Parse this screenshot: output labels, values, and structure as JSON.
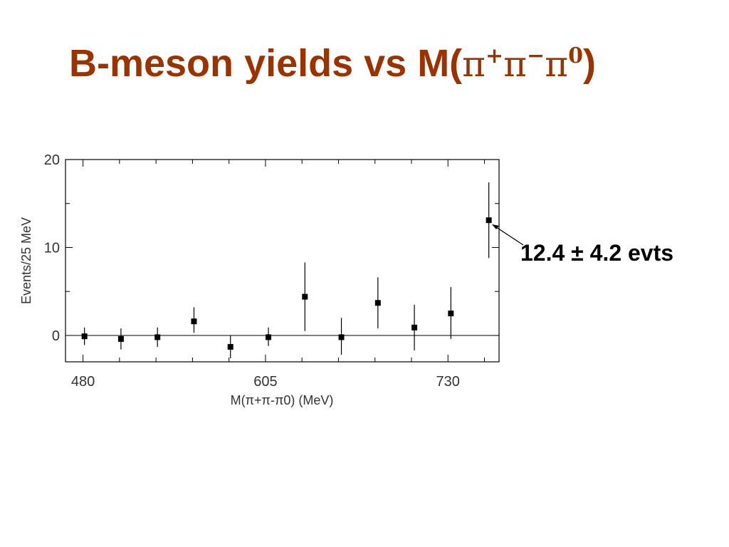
{
  "title": {
    "prefix": "B-meson yields vs M(",
    "pi": "π",
    "sup_plus": "+",
    "sup_minus": "−",
    "sup_zero": "0",
    "suffix": ")"
  },
  "annotation": "12.4 ± 4.2 evts",
  "chart_data": {
    "type": "scatter",
    "title": "",
    "xlabel": "M(π+π-π0) (MeV)",
    "ylabel": "Events/25 MeV",
    "xlim": [
      468,
      765
    ],
    "ylim": [
      -3,
      20
    ],
    "x_ticks": [
      480,
      605,
      730
    ],
    "y_ticks": [
      0,
      10,
      20
    ],
    "grid": false,
    "errorbars": true,
    "zero_line": true,
    "x": [
      481,
      506,
      531,
      556,
      581,
      607,
      632,
      657,
      682,
      707,
      732,
      758
    ],
    "y": [
      -0.1,
      -0.4,
      -0.2,
      1.6,
      -1.3,
      -0.2,
      4.4,
      -0.2,
      3.7,
      0.9,
      2.5,
      13.1
    ],
    "err_low": [
      1.0,
      1.2,
      1.1,
      1.3,
      1.3,
      1.0,
      3.9,
      2.0,
      2.9,
      2.6,
      2.9,
      4.3
    ],
    "err_high": [
      1.0,
      1.2,
      1.1,
      1.6,
      1.3,
      1.1,
      3.9,
      2.2,
      2.9,
      2.6,
      3.0,
      4.3
    ]
  }
}
